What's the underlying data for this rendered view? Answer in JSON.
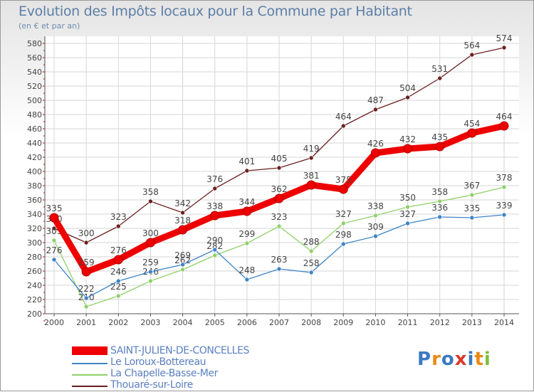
{
  "header": {
    "title": "Evolution des Impôts locaux pour la Commune par Habitant",
    "subtitle": "(en € et par an)"
  },
  "colors": {
    "grid": "#d6d6d6",
    "axis": "#555555",
    "tick_red": "#cc0000",
    "label": "#444444"
  },
  "chart_data": {
    "type": "line",
    "title": "Evolution des Impôts locaux pour la Commune par Habitant",
    "subtitle": "(en € et par an)",
    "xlabel": "",
    "ylabel": "",
    "ylim": [
      200,
      580
    ],
    "y_step": 20,
    "grid": true,
    "legend_position": "bottom-left",
    "categories": [
      "2000",
      "2001",
      "2002",
      "2003",
      "2004",
      "2005",
      "2006",
      "2007",
      "2008",
      "2009",
      "2010",
      "2011",
      "2012",
      "2013",
      "2014"
    ],
    "yticks": [
      "200",
      "220",
      "240",
      "260",
      "280",
      "300",
      "320",
      "340",
      "360",
      "380",
      "400",
      "420",
      "440",
      "460",
      "480",
      "500",
      "520",
      "540",
      "560",
      "580"
    ],
    "series": [
      {
        "name": "Thouaré-sur-Loire",
        "color": "#6b1f1f",
        "values": [
          320,
          300,
          323,
          358,
          342,
          376,
          401,
          405,
          419,
          464,
          487,
          504,
          531,
          564,
          574
        ],
        "labels": [
          "320",
          "300",
          "323",
          "358",
          "342",
          "376",
          "401",
          "405",
          "419",
          "464",
          "487",
          "504",
          "531",
          "564",
          "574"
        ],
        "bold": false
      },
      {
        "name": "La Chapelle-Basse-Mer",
        "color": "#8fd16a",
        "values": [
          303,
          210,
          225,
          246,
          262,
          282,
          299,
          323,
          288,
          327,
          338,
          350,
          358,
          367,
          378
        ],
        "labels": [
          "303",
          "210",
          "225",
          "246",
          "262",
          "282",
          "299",
          "323",
          "288",
          "327",
          "338",
          "350",
          "358",
          "367",
          "378"
        ],
        "bold": false
      },
      {
        "name": "Le Loroux-Bottereau",
        "color": "#3d84c6",
        "values": [
          276,
          222,
          246,
          259,
          269,
          290,
          248,
          263,
          258,
          298,
          309,
          327,
          336,
          335,
          339
        ],
        "labels": [
          "276",
          "222",
          "246",
          "259",
          "269",
          "290",
          "248",
          "263",
          "258",
          "298",
          "309",
          "327",
          "336",
          "335",
          "339"
        ],
        "bold": false
      },
      {
        "name": "SAINT-JULIEN-DE-CONCELLES",
        "color": "#ee0000",
        "values": [
          335,
          259,
          276,
          300,
          318,
          338,
          344,
          362,
          381,
          375,
          426,
          432,
          435,
          454,
          464
        ],
        "labels": [
          "335",
          "259",
          "276",
          "300",
          "318",
          "338",
          "344",
          "362",
          "381",
          "375",
          "426",
          "432",
          "435",
          "454",
          "464"
        ],
        "bold": true
      }
    ]
  },
  "legend": {
    "items": [
      {
        "label": "SAINT-JULIEN-DE-CONCELLES",
        "color": "#ee0000"
      },
      {
        "label": "Le Loroux-Bottereau",
        "color": "#3d84c6"
      },
      {
        "label": "La Chapelle-Basse-Mer",
        "color": "#8fd16a"
      },
      {
        "label": "Thouaré-sur-Loire",
        "color": "#6b1f1f"
      }
    ]
  },
  "logo": {
    "text": "Proxiti",
    "letters": [
      {
        "ch": "P",
        "color": "#3a78c2"
      },
      {
        "ch": "r",
        "color": "#e98a16"
      },
      {
        "ch": "o",
        "color": "#3a78c2"
      },
      {
        "ch": "x",
        "color": "#d93a2b"
      },
      {
        "ch": "i",
        "color": "#3a78c2"
      },
      {
        "ch": "t",
        "color": "#e98a16"
      },
      {
        "ch": "i",
        "color": "#7cbf3a"
      }
    ]
  }
}
